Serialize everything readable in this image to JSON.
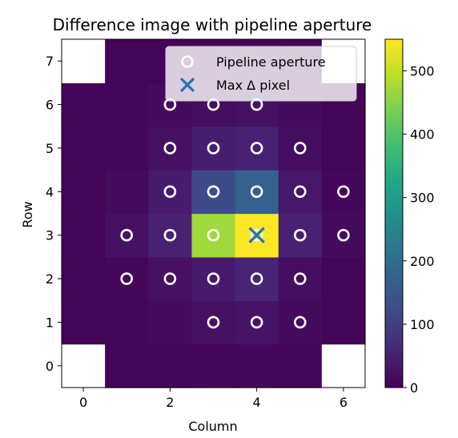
{
  "chart_data": {
    "type": "heatmap",
    "title": "Difference image with pipeline aperture",
    "xlabel": "Column",
    "ylabel": "Row",
    "x_ticks": [
      "0",
      "2",
      "4",
      "6"
    ],
    "y_ticks": [
      "0",
      "1",
      "2",
      "3",
      "4",
      "5",
      "6",
      "7"
    ],
    "colorbar_ticks": [
      "0",
      "100",
      "200",
      "300",
      "400",
      "500"
    ],
    "colorbar_range": [
      0,
      550
    ],
    "colormap": "viridis",
    "columns": [
      0,
      1,
      2,
      3,
      4,
      5,
      6
    ],
    "rows": [
      0,
      1,
      2,
      3,
      4,
      5,
      6,
      7
    ],
    "grid": [
      [
        null,
        5,
        8,
        10,
        10,
        8,
        null
      ],
      [
        5,
        8,
        15,
        25,
        30,
        15,
        5
      ],
      [
        5,
        10,
        25,
        40,
        55,
        20,
        5
      ],
      [
        5,
        25,
        50,
        470,
        550,
        50,
        15
      ],
      [
        5,
        15,
        40,
        125,
        170,
        35,
        10
      ],
      [
        5,
        10,
        25,
        45,
        50,
        20,
        5
      ],
      [
        5,
        8,
        15,
        20,
        25,
        15,
        5
      ],
      [
        null,
        5,
        5,
        8,
        8,
        5,
        null
      ]
    ],
    "aperture_pixels": [
      [
        3,
        1
      ],
      [
        4,
        1
      ],
      [
        5,
        1
      ],
      [
        1,
        2
      ],
      [
        2,
        2
      ],
      [
        3,
        2
      ],
      [
        4,
        2
      ],
      [
        5,
        2
      ],
      [
        1,
        3
      ],
      [
        2,
        3
      ],
      [
        3,
        3
      ],
      [
        4,
        3
      ],
      [
        5,
        3
      ],
      [
        6,
        3
      ],
      [
        2,
        4
      ],
      [
        3,
        4
      ],
      [
        4,
        4
      ],
      [
        5,
        4
      ],
      [
        6,
        4
      ],
      [
        2,
        5
      ],
      [
        3,
        5
      ],
      [
        4,
        5
      ],
      [
        5,
        5
      ],
      [
        2,
        6
      ],
      [
        3,
        6
      ],
      [
        4,
        6
      ]
    ],
    "max_pixel": [
      4,
      3
    ],
    "legend": {
      "placement": "top-right",
      "entries": [
        {
          "label": "Pipeline aperture",
          "marker": "circle"
        },
        {
          "label": "Max Δ pixel",
          "marker": "x"
        }
      ]
    },
    "colors": {
      "aperture_marker": "#ffffff",
      "max_marker": "#1f77b4",
      "missing": "#ffffff"
    }
  }
}
